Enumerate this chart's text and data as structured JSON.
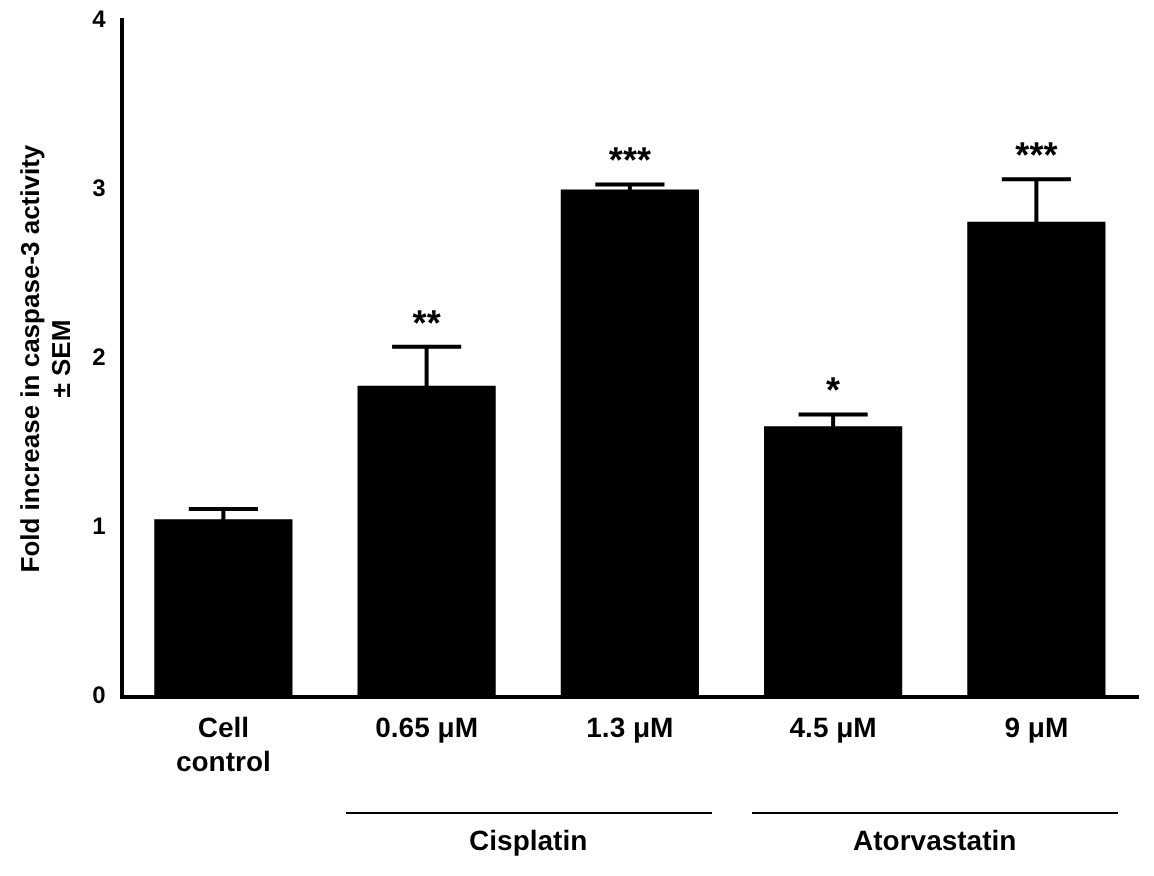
{
  "chart_data": {
    "type": "bar",
    "ylabel": "Fold increase in caspase-3 activity ± SEM",
    "categories": [
      "Cell control",
      "0.65 μM",
      "1.3 μM",
      "4.5 μM",
      "9 μM"
    ],
    "values": [
      1.05,
      1.84,
      3.0,
      1.6,
      2.81
    ],
    "errors": [
      0.06,
      0.23,
      0.03,
      0.07,
      0.25
    ],
    "value_labels": [
      null,
      "**",
      "***",
      "*",
      "***"
    ],
    "color": "#000000",
    "ylim": [
      0,
      4
    ],
    "yticks": [
      0,
      1,
      2,
      3,
      4
    ],
    "grid": false,
    "legend": false,
    "annotations": [
      "Cisplatin",
      "Atorvastatin"
    ]
  }
}
